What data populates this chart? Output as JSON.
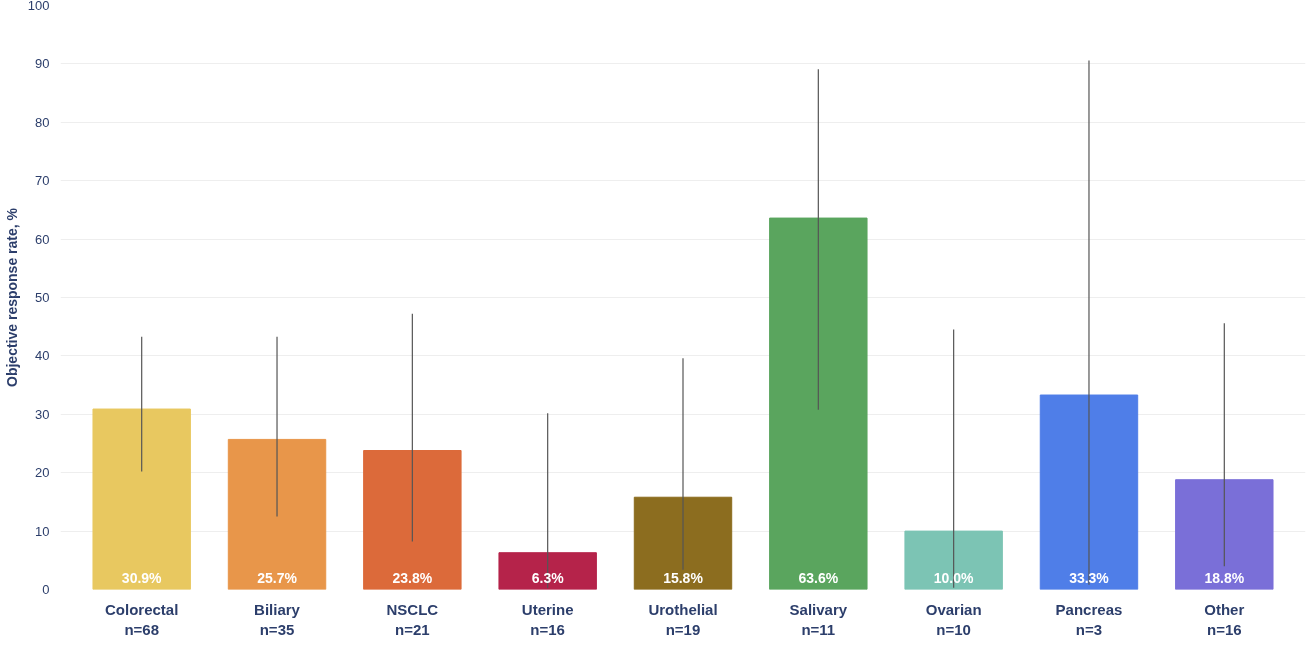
{
  "chart_data": {
    "type": "bar",
    "ylabel": "Objective response rate, %",
    "categories": [
      "Colorectal\nn=68",
      "Biliary\nn=35",
      "NSCLC\nn=21",
      "Uterine\nn=16",
      "Urothelial\nn=19",
      "Salivary\nn=11",
      "Ovarian\nn=10",
      "Pancreas\nn=3",
      "Other\nn=16"
    ],
    "values": [
      30.9,
      25.7,
      23.8,
      6.3,
      15.8,
      63.6,
      10.0,
      33.3,
      18.8
    ],
    "value_labels": [
      "30.9%",
      "25.7%",
      "23.8%",
      "6.3%",
      "15.8%",
      "63.6%",
      "10.0%",
      "33.3%",
      "18.8%"
    ],
    "colors": [
      "#e8c860",
      "#e8964a",
      "#dc6a3a",
      "#b5234a",
      "#8c6d1f",
      "#5aa55e",
      "#7cc4b4",
      "#4f7ee8",
      "#7a6fd8"
    ],
    "errors": [
      [
        20.2,
        43.3
      ],
      [
        12.5,
        43.3
      ],
      [
        8.2,
        47.2
      ],
      [
        0.2,
        30.2
      ],
      [
        3.4,
        39.6
      ],
      [
        30.8,
        89.1
      ],
      [
        0.3,
        44.5
      ],
      [
        0.8,
        90.6
      ],
      [
        4.0,
        45.6
      ]
    ],
    "ylim": [
      0,
      100
    ],
    "yticks": [
      0,
      10,
      20,
      30,
      40,
      50,
      60,
      70,
      80,
      90,
      100
    ],
    "grid": "y"
  }
}
